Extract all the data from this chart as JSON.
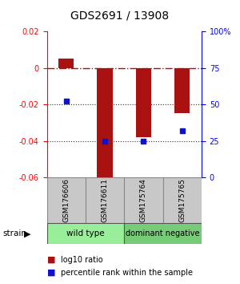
{
  "title": "GDS2691 / 13908",
  "samples": [
    "GSM176606",
    "GSM176611",
    "GSM175764",
    "GSM175765"
  ],
  "log10_ratios": [
    0.005,
    -0.062,
    -0.038,
    -0.025
  ],
  "percentile_ranks": [
    52,
    25,
    25,
    32
  ],
  "ylim_left": [
    -0.06,
    0.02
  ],
  "ylim_right": [
    0,
    100
  ],
  "yticks_left": [
    -0.06,
    -0.04,
    -0.02,
    0.0,
    0.02
  ],
  "ytick_labels_left": [
    "-0.06",
    "-0.04",
    "-0.02",
    "0",
    "0.02"
  ],
  "yticks_right": [
    0,
    25,
    50,
    75,
    100
  ],
  "ytick_labels_right": [
    "0",
    "25",
    "50",
    "75",
    "100%"
  ],
  "bar_color": "#aa1111",
  "dot_color": "#1111cc",
  "zero_line_color": "#cc0000",
  "dotted_line_color": "#333333",
  "sample_box_color": "#c8c8c8",
  "wild_type_color": "#99ee99",
  "dominant_neg_color": "#77cc77",
  "legend_bar_label": "log10 ratio",
  "legend_dot_label": "percentile rank within the sample",
  "strain_label": "strain",
  "background_color": "#ffffff"
}
